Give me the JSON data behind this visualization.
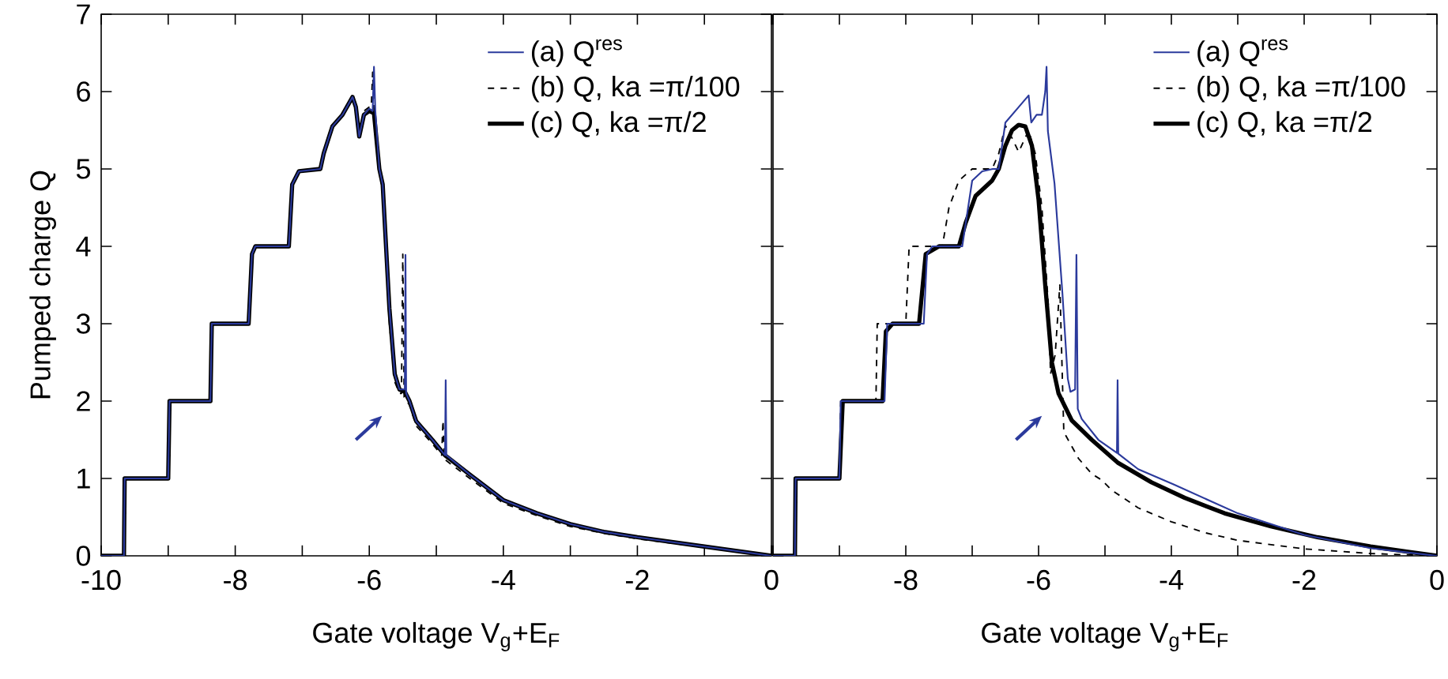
{
  "chart_data": [
    {
      "type": "line",
      "xlabel": "Gate voltage V$_{g}$+E$_{F}$",
      "ylabel": "Pumped charge Q",
      "xlim": [
        -10,
        0
      ],
      "ylim": [
        0,
        7
      ],
      "xticks": [
        -10,
        {
          "value": -9,
          "label": null
        },
        -8,
        {
          "value": -7,
          "label": null
        },
        -6,
        {
          "value": -5,
          "label": null
        },
        -4,
        {
          "value": -3,
          "label": null
        },
        -2,
        {
          "value": -1,
          "label": null
        },
        0
      ],
      "yticks": [
        0,
        1,
        2,
        3,
        4,
        5,
        6,
        7
      ],
      "legend": "top right",
      "marker": "none",
      "series": [
        {
          "name": "(a) Q$^{res}$",
          "color": "#2b3a9c",
          "line_style": "solid",
          "x": [
            -10,
            -9.66,
            -9.65,
            -9.0,
            -8.98,
            -8.37,
            -8.35,
            -7.8,
            -7.75,
            -7.7,
            -7.2,
            -7.15,
            -7.05,
            -6.73,
            -6.68,
            -6.55,
            -6.4,
            -6.25,
            -6.2,
            -6.15,
            -6.08,
            -6.0,
            -5.95,
            -5.93,
            -5.91,
            -5.85,
            -5.8,
            -5.7,
            -5.62,
            -5.55,
            -5.47,
            -5.46,
            -5.45,
            -5.4,
            -5.3,
            -5.06,
            -4.87,
            -4.86,
            -4.85,
            -4.5,
            -4.0,
            -3.5,
            -3.0,
            -2.5,
            -2.0,
            -1.0,
            0
          ],
          "values": [
            0,
            0,
            1,
            1,
            2,
            2,
            3,
            3,
            3.9,
            4,
            4,
            4.8,
            4.97,
            5,
            5.2,
            5.55,
            5.7,
            5.93,
            5.8,
            5.42,
            5.7,
            5.78,
            5.75,
            6.32,
            5.75,
            5.0,
            4.8,
            3.2,
            2.35,
            2.15,
            2.15,
            3.89,
            2.1,
            2.0,
            1.74,
            1.5,
            1.3,
            2.27,
            1.3,
            1.05,
            0.72,
            0.55,
            0.41,
            0.31,
            0.24,
            0.12,
            0
          ]
        },
        {
          "name": "(b) Q, ka =π/100",
          "color": "#000000",
          "line_style": "dashed",
          "x": [
            -10,
            -9.66,
            -9.65,
            -9.0,
            -8.98,
            -8.37,
            -8.35,
            -7.8,
            -7.75,
            -7.7,
            -7.2,
            -7.15,
            -7.05,
            -6.73,
            -6.68,
            -6.55,
            -6.4,
            -6.25,
            -6.2,
            -6.15,
            -6.08,
            -6.0,
            -5.97,
            -5.95,
            -5.93,
            -5.85,
            -5.8,
            -5.7,
            -5.62,
            -5.55,
            -5.52,
            -5.5,
            -5.48,
            -5.4,
            -5.3,
            -5.06,
            -4.92,
            -4.9,
            -4.88,
            -4.5,
            -4.0,
            -3.5,
            -3.0,
            -2.5,
            -2.0,
            -1.0,
            0
          ],
          "values": [
            0,
            0,
            1,
            1,
            2,
            2,
            3,
            3,
            3.9,
            4,
            4,
            4.8,
            4.97,
            5,
            5.2,
            5.55,
            5.7,
            5.93,
            5.8,
            5.42,
            5.75,
            5.8,
            5.8,
            6.25,
            5.75,
            5.0,
            4.7,
            3.0,
            2.25,
            2.1,
            2.1,
            3.9,
            2.05,
            1.95,
            1.68,
            1.45,
            1.3,
            1.75,
            1.25,
            1.0,
            0.68,
            0.52,
            0.38,
            0.29,
            0.22,
            0.11,
            0
          ]
        },
        {
          "name": "(c) Q, ka =π/2",
          "color": "#000000",
          "line_style": "solid",
          "x": [
            -10,
            -9.66,
            -9.65,
            -9.0,
            -8.98,
            -8.37,
            -8.35,
            -7.8,
            -7.75,
            -7.7,
            -7.2,
            -7.15,
            -7.05,
            -6.73,
            -6.68,
            -6.55,
            -6.4,
            -6.25,
            -6.2,
            -6.15,
            -6.08,
            -6.0,
            -5.93,
            -5.85,
            -5.8,
            -5.7,
            -5.62,
            -5.55,
            -5.47,
            -5.4,
            -5.3,
            -5.06,
            -4.87,
            -4.5,
            -4.0,
            -3.5,
            -3.0,
            -2.5,
            -2.0,
            -1.0,
            0
          ],
          "values": [
            0,
            0,
            1,
            1,
            2,
            2,
            3,
            3,
            3.9,
            4,
            4,
            4.8,
            4.97,
            5,
            5.2,
            5.55,
            5.7,
            5.93,
            5.8,
            5.42,
            5.7,
            5.75,
            5.72,
            5.0,
            4.8,
            3.2,
            2.35,
            2.15,
            2.12,
            2.0,
            1.74,
            1.5,
            1.3,
            1.05,
            0.72,
            0.55,
            0.41,
            0.31,
            0.24,
            0.12,
            0
          ]
        }
      ]
    },
    {
      "type": "line",
      "xlabel": "Gate voltage V$_{g}$+E$_{F}$",
      "xlim": [
        -10,
        0
      ],
      "ylim": [
        0,
        7
      ],
      "tick_labels": "x",
      "xticks": [
        {
          "value": -10,
          "label": null
        },
        {
          "value": -9,
          "label": null
        },
        -8,
        {
          "value": -7,
          "label": null
        },
        -6,
        {
          "value": -5,
          "label": null
        },
        -4,
        {
          "value": -3,
          "label": null
        },
        -2,
        {
          "value": -1,
          "label": null
        },
        0
      ],
      "yticks": [
        0,
        1,
        2,
        3,
        4,
        5,
        6,
        7
      ],
      "legend": "top right",
      "marker": "none",
      "series": [
        {
          "name": "(a) Q$^{res}$",
          "color": "#2b3a9c",
          "line_style": "solid",
          "x": [
            -10,
            -9.67,
            -9.66,
            -9.0,
            -8.98,
            -8.32,
            -8.28,
            -7.73,
            -7.68,
            -7.6,
            -7.15,
            -7.0,
            -6.85,
            -6.69,
            -6.6,
            -6.5,
            -6.3,
            -6.15,
            -6.11,
            -6.03,
            -5.95,
            -5.9,
            -5.88,
            -5.86,
            -5.76,
            -5.64,
            -5.56,
            -5.52,
            -5.45,
            -5.43,
            -5.41,
            -5.35,
            -5.1,
            -4.82,
            -4.81,
            -4.8,
            -4.5,
            -3.96,
            -3.0,
            -2.0,
            -1.0,
            0
          ],
          "values": [
            0,
            0,
            1,
            1,
            2,
            2,
            3,
            3,
            3.9,
            4,
            4,
            4.85,
            4.97,
            5,
            5.0,
            5.6,
            5.8,
            5.95,
            5.6,
            5.7,
            5.7,
            6.0,
            6.32,
            5.49,
            4.81,
            3.38,
            2.29,
            2.12,
            2.15,
            3.89,
            1.9,
            1.77,
            1.5,
            1.33,
            2.27,
            1.32,
            1.12,
            0.92,
            0.55,
            0.27,
            0.1,
            0
          ]
        },
        {
          "name": "(b) Q, ka =π/100",
          "color": "#000000",
          "line_style": "dashed",
          "x": [
            -10,
            -9.67,
            -9.66,
            -9.0,
            -8.98,
            -8.45,
            -8.43,
            -8.0,
            -7.95,
            -7.45,
            -7.35,
            -7.2,
            -7.0,
            -6.7,
            -6.6,
            -6.5,
            -6.4,
            -6.3,
            -6.15,
            -6.05,
            -5.95,
            -5.85,
            -5.82,
            -5.75,
            -5.68,
            -5.62,
            -5.4,
            -5.2,
            -5.05,
            -4.9,
            -4.5,
            -4.0,
            -3.5,
            -3.0,
            -2.0,
            -1.0,
            0
          ],
          "values": [
            0,
            0,
            1,
            1,
            2,
            2,
            3,
            3,
            4,
            4,
            4.5,
            4.85,
            5.0,
            5.0,
            5.2,
            5.56,
            5.4,
            5.22,
            5.5,
            5.2,
            4.5,
            3.2,
            2.35,
            2.6,
            3.5,
            1.6,
            1.26,
            1.06,
            0.98,
            0.85,
            0.62,
            0.44,
            0.3,
            0.2,
            0.09,
            0.03,
            0
          ]
        },
        {
          "name": "(c) Q, ka =π/2",
          "color": "#000000",
          "line_style": "solid",
          "x": [
            -10,
            -9.67,
            -9.66,
            -9.0,
            -8.95,
            -8.35,
            -8.3,
            -8.2,
            -7.8,
            -7.7,
            -7.5,
            -7.2,
            -7.1,
            -6.95,
            -6.7,
            -6.6,
            -6.5,
            -6.4,
            -6.3,
            -6.2,
            -6.1,
            -6.0,
            -5.9,
            -5.8,
            -5.7,
            -5.5,
            -5.2,
            -4.8,
            -4.3,
            -3.8,
            -3.2,
            -2.5,
            -1.8,
            -1.0,
            0
          ],
          "values": [
            0,
            0,
            1,
            1,
            2,
            2,
            2.9,
            3,
            3,
            3.9,
            4,
            4,
            4.3,
            4.65,
            4.85,
            5.0,
            5.3,
            5.5,
            5.57,
            5.55,
            5.3,
            4.6,
            3.5,
            2.5,
            2.1,
            1.75,
            1.5,
            1.2,
            0.95,
            0.75,
            0.55,
            0.38,
            0.24,
            0.12,
            0
          ]
        }
      ]
    }
  ]
}
